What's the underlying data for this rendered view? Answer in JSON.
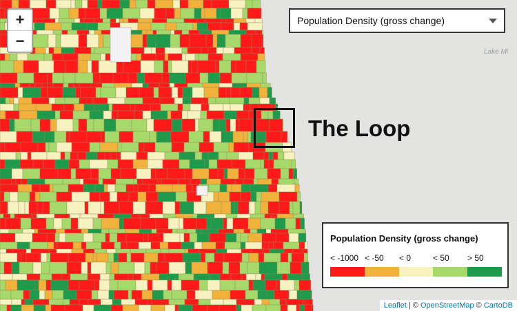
{
  "zoom": {
    "in_label": "+",
    "out_label": "−"
  },
  "layer_select": {
    "value": "Population Density (gross change)"
  },
  "map": {
    "lake_label": "Lake Mi",
    "annotation": "The Loop"
  },
  "legend": {
    "title": "Population Density (gross change)",
    "classes": [
      {
        "label": "< -1000",
        "color": "#ff1a1a"
      },
      {
        "label": "< -50",
        "color": "#f0b23a"
      },
      {
        "label": "< 0",
        "color": "#f8f1c0"
      },
      {
        "label": "< 50",
        "color": "#a6d96a"
      },
      {
        "label": "> 50",
        "color": "#1e9a4a"
      }
    ]
  },
  "attribution": {
    "leaflet": "Leaflet",
    "sep": " | © ",
    "osm": "OpenStreetMap",
    "sep2": " © ",
    "carto": "CartoDB"
  }
}
